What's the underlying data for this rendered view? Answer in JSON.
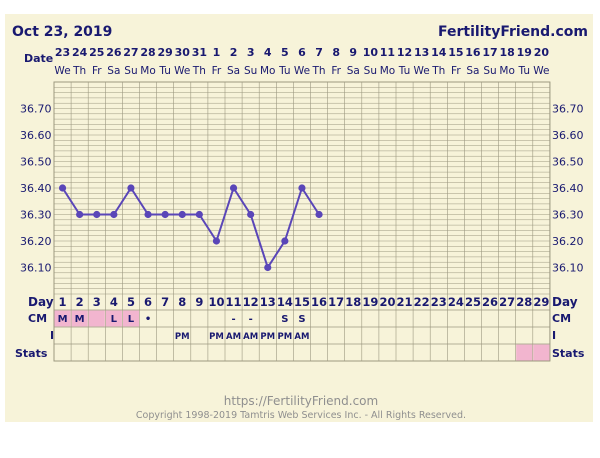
{
  "header": {
    "chart_date": "Oct 23, 2019",
    "site_name": "FertilityFriend.com"
  },
  "labels": {
    "date": "Date",
    "day": "Day",
    "cm": "CM",
    "intercourse": "I",
    "stats": "Stats"
  },
  "footer": {
    "url": "https://FertilityFriend.com",
    "copyright": "Copyright 1998-2019 Tamtris Web Services Inc. - All Rights Reserved."
  },
  "colors": {
    "chart_background": "#f7f3d9",
    "grid_line": "#9c9880",
    "series_line": "#5a46b8",
    "label_text": "#191970",
    "highlight_pink": "#f2b5cf",
    "footer_text": "#8f8f8f"
  },
  "chart_data": {
    "type": "line",
    "cycle_days": [
      1,
      2,
      3,
      4,
      5,
      6,
      7,
      8,
      9,
      10,
      11,
      12,
      13,
      14,
      15,
      16,
      17,
      18,
      19,
      20,
      21,
      22,
      23,
      24,
      25,
      26,
      27,
      28,
      29
    ],
    "dates": [
      "23",
      "24",
      "25",
      "26",
      "27",
      "28",
      "29",
      "30",
      "31",
      "1",
      "2",
      "3",
      "4",
      "5",
      "6",
      "7",
      "8",
      "9",
      "10",
      "11",
      "12",
      "13",
      "14",
      "15",
      "16",
      "17",
      "18",
      "19",
      "20"
    ],
    "weekdays": [
      "We",
      "Th",
      "Fr",
      "Sa",
      "Su",
      "Mo",
      "Tu",
      "We",
      "Th",
      "Fr",
      "Sa",
      "Su",
      "Mo",
      "Tu",
      "We",
      "Th",
      "Fr",
      "Sa",
      "Su",
      "Mo",
      "Tu",
      "We",
      "Th",
      "Fr",
      "Sa",
      "Su",
      "Mo",
      "Tu",
      "We"
    ],
    "y_ticks": [
      "36.70",
      "36.60",
      "36.50",
      "36.40",
      "36.30",
      "36.20",
      "36.10"
    ],
    "ylim": [
      36.0,
      36.8
    ],
    "grid": true,
    "series": [
      {
        "values": [
          36.4,
          36.3,
          36.3,
          36.3,
          36.4,
          36.3,
          36.3,
          36.3,
          36.3,
          36.2,
          36.4,
          36.3,
          36.1,
          36.2,
          36.4,
          36.3,
          null,
          null,
          null,
          null,
          null,
          null,
          null,
          null,
          null,
          null,
          null,
          null,
          null
        ]
      }
    ],
    "cm_row": [
      "M",
      "M",
      "",
      "L",
      "L",
      "•",
      "",
      "",
      "",
      "",
      "-",
      "-",
      "",
      "S",
      "S",
      "",
      "",
      "",
      "",
      "",
      "",
      "",
      "",
      "",
      "",
      "",
      "",
      "",
      ""
    ],
    "cm_highlight": [
      true,
      true,
      true,
      true,
      true,
      false,
      false,
      false,
      false,
      false,
      false,
      false,
      false,
      false,
      false,
      false,
      false,
      false,
      false,
      false,
      false,
      false,
      false,
      false,
      false,
      false,
      false,
      false,
      false
    ],
    "intercourse_row": [
      "",
      "",
      "",
      "",
      "",
      "",
      "",
      "PM",
      "",
      "PM",
      "AM",
      "AM",
      "PM",
      "PM",
      "AM",
      "",
      "",
      "",
      "",
      "",
      "",
      "",
      "",
      "",
      "",
      "",
      "",
      "",
      ""
    ],
    "stats_highlight": [
      false,
      false,
      false,
      false,
      false,
      false,
      false,
      false,
      false,
      false,
      false,
      false,
      false,
      false,
      false,
      false,
      false,
      false,
      false,
      false,
      false,
      false,
      false,
      false,
      false,
      false,
      false,
      true,
      true
    ]
  }
}
